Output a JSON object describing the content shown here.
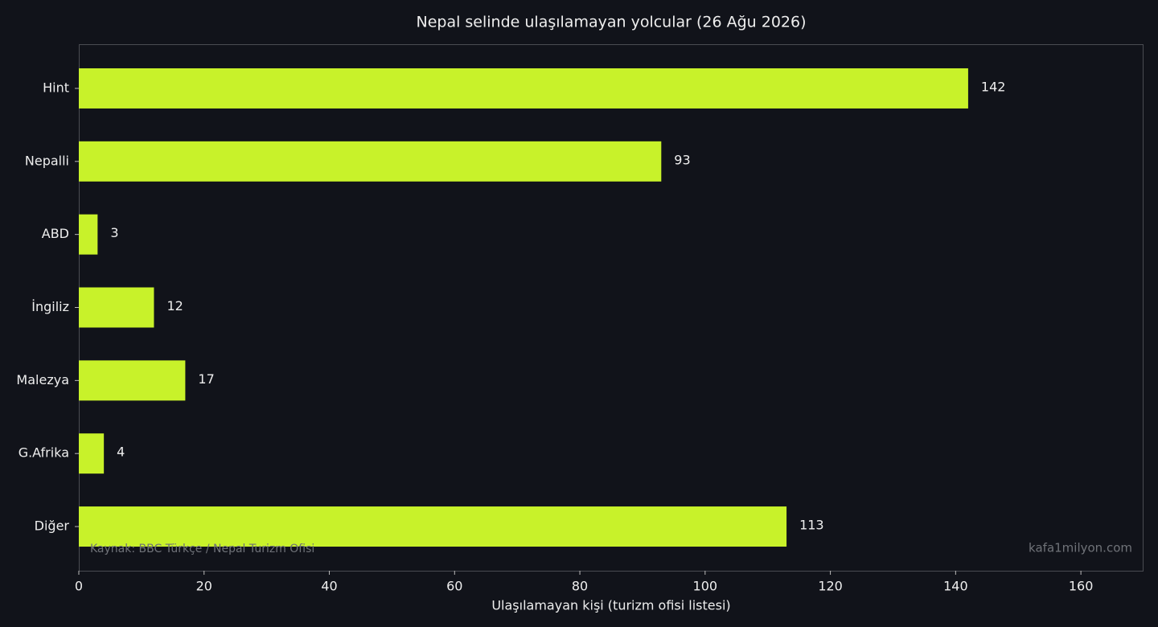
{
  "chart_data": {
    "type": "barh",
    "title": "Nepal selinde ulaşılamayan yolcular (26 Ağu 2026)",
    "xlabel": "Ulaşılamayan kişi (turizm ofisi listesi)",
    "categories": [
      "Hint",
      "Nepalli",
      "ABD",
      "İngiliz",
      "Malezya",
      "G.Afrika",
      "Diğer"
    ],
    "values": [
      142,
      93,
      3,
      12,
      17,
      4,
      113
    ],
    "color": "#c8f22a",
    "xlim": [
      0,
      170
    ],
    "xticks": [
      0,
      20,
      40,
      60,
      80,
      100,
      120,
      140,
      160
    ],
    "source": "Kaynak: BBC Türkçe / Nepal Turizm Ofisi",
    "watermark": "kafa1milyon.com"
  }
}
